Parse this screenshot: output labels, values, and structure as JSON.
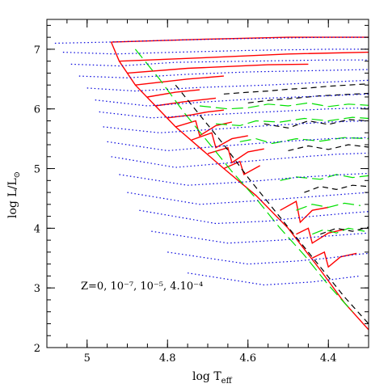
{
  "chart_data": {
    "type": "line",
    "title": "",
    "xlabel": "log T",
    "xlabel_sub": "eff",
    "ylabel": "log L/L",
    "ylabel_sub": "⊙",
    "xlim": [
      5.1,
      4.3
    ],
    "ylim": [
      2,
      7.5
    ],
    "x_ticks": [
      5,
      4.8,
      4.6,
      4.4
    ],
    "x_tick_labels": [
      "5",
      "4.8",
      "4.6",
      "4.4"
    ],
    "y_ticks": [
      2,
      3,
      4,
      5,
      6,
      7
    ],
    "y_tick_labels": [
      "2",
      "3",
      "4",
      "5",
      "6",
      "7"
    ],
    "annotation": "Z=0, 10⁻⁷, 10⁻⁵, 4.10⁻⁴",
    "grid": false,
    "series": [
      {
        "color": "#ff0000",
        "dash": "solid",
        "zams": {
          "x": [
            4.94,
            4.92,
            4.88,
            4.83,
            4.78,
            4.72,
            4.66,
            4.58,
            4.5,
            4.42,
            4.36,
            4.3
          ],
          "y": [
            7.12,
            6.8,
            6.4,
            6.05,
            5.7,
            5.35,
            5.0,
            4.55,
            4.0,
            3.3,
            2.75,
            2.3
          ]
        },
        "tracks": [
          {
            "x": [
              4.94,
              4.7,
              4.5,
              4.3
            ],
            "y": [
              7.12,
              7.17,
              7.2,
              7.2
            ]
          },
          {
            "x": [
              4.92,
              4.7,
              4.5,
              4.3
            ],
            "y": [
              6.8,
              6.86,
              6.92,
              6.95
            ]
          },
          {
            "x": [
              4.9,
              4.75,
              4.55,
              4.45
            ],
            "y": [
              6.6,
              6.68,
              6.74,
              6.75
            ]
          },
          {
            "x": [
              4.88,
              4.75,
              4.66
            ],
            "y": [
              6.4,
              6.5,
              6.55
            ]
          },
          {
            "x": [
              4.85,
              4.78,
              4.72
            ],
            "y": [
              6.2,
              6.28,
              6.32
            ]
          },
          {
            "x": [
              4.83,
              4.76,
              4.72,
              4.68
            ],
            "y": [
              6.05,
              6.12,
              6.15,
              6.18
            ]
          },
          {
            "x": [
              4.8,
              4.74,
              4.7,
              4.66
            ],
            "y": [
              5.85,
              5.9,
              5.95,
              5.98
            ]
          },
          {
            "x": [
              4.78,
              4.73,
              4.72,
              4.68,
              4.64
            ],
            "y": [
              5.7,
              5.8,
              5.55,
              5.72,
              5.78
            ]
          },
          {
            "x": [
              4.74,
              4.69,
              4.68,
              4.64,
              4.6
            ],
            "y": [
              5.48,
              5.6,
              5.35,
              5.5,
              5.55
            ]
          },
          {
            "x": [
              4.7,
              4.65,
              4.64,
              4.6,
              4.56
            ],
            "y": [
              5.25,
              5.35,
              5.1,
              5.28,
              5.33
            ]
          },
          {
            "x": [
              4.66,
              4.62,
              4.61,
              4.57
            ],
            "y": [
              5.0,
              5.12,
              4.9,
              5.05
            ]
          },
          {
            "x": [
              4.52,
              4.48,
              4.47,
              4.44,
              4.4
            ],
            "y": [
              4.3,
              4.45,
              4.1,
              4.3,
              4.35
            ]
          },
          {
            "x": [
              4.48,
              4.45,
              4.44,
              4.4,
              4.36
            ],
            "y": [
              3.9,
              4.0,
              3.75,
              3.92,
              3.98
            ]
          },
          {
            "x": [
              4.44,
              4.41,
              4.4,
              4.37,
              4.33
            ],
            "y": [
              3.5,
              3.6,
              3.35,
              3.52,
              3.58
            ]
          }
        ]
      },
      {
        "color": "#00e000",
        "dash": "14,6",
        "tracks": [
          {
            "x": [
              4.88,
              4.82,
              4.76,
              4.7,
              4.64,
              4.58,
              4.52,
              4.46,
              4.4,
              4.34
            ],
            "y": [
              7.0,
              6.5,
              5.95,
              5.45,
              4.95,
              4.5,
              4.0,
              3.55,
              3.05,
              2.6
            ]
          },
          {
            "x": [
              4.72,
              4.65,
              4.6,
              4.55,
              4.5,
              4.45,
              4.4,
              4.35,
              4.3
            ],
            "y": [
              6.05,
              6.0,
              6.02,
              6.08,
              6.05,
              6.1,
              6.04,
              6.08,
              6.06
            ]
          },
          {
            "x": [
              4.68,
              4.62,
              4.58,
              4.52,
              4.46,
              4.4,
              4.34,
              4.3
            ],
            "y": [
              5.75,
              5.72,
              5.8,
              5.78,
              5.84,
              5.8,
              5.86,
              5.84
            ]
          },
          {
            "x": [
              4.62,
              4.58,
              4.54,
              4.48,
              4.42,
              4.36,
              4.3
            ],
            "y": [
              5.45,
              5.5,
              5.42,
              5.5,
              5.46,
              5.52,
              5.5
            ]
          },
          {
            "x": [
              4.52,
              4.48,
              4.42,
              4.38,
              4.34,
              4.3
            ],
            "y": [
              4.8,
              4.86,
              4.82,
              4.9,
              4.85,
              4.88
            ]
          },
          {
            "x": [
              4.48,
              4.44,
              4.4,
              4.36,
              4.32
            ],
            "y": [
              4.3,
              4.4,
              4.35,
              4.42,
              4.38
            ]
          },
          {
            "x": [
              4.44,
              4.41,
              4.38,
              4.35,
              4.31
            ],
            "y": [
              3.9,
              3.98,
              3.92,
              4.0,
              3.95
            ]
          }
        ]
      },
      {
        "color": "#000000",
        "dash": "7,5",
        "tracks": [
          {
            "x": [
              4.78,
              4.72,
              4.66,
              4.6,
              4.54,
              4.48,
              4.42,
              4.36,
              4.3
            ],
            "y": [
              6.4,
              5.9,
              5.4,
              4.85,
              4.35,
              3.85,
              3.35,
              2.85,
              2.4
            ]
          },
          {
            "x": [
              4.66,
              4.6,
              4.55,
              4.5,
              4.45,
              4.4,
              4.35,
              4.3
            ],
            "y": [
              6.25,
              6.28,
              6.3,
              6.33,
              6.35,
              6.38,
              6.4,
              6.42
            ]
          },
          {
            "x": [
              4.6,
              4.54,
              4.48,
              4.42,
              4.36,
              4.3
            ],
            "y": [
              6.1,
              6.15,
              6.18,
              6.22,
              6.24,
              6.26
            ]
          },
          {
            "x": [
              4.56,
              4.5,
              4.45,
              4.4,
              4.35,
              4.3
            ],
            "y": [
              5.75,
              5.68,
              5.8,
              5.74,
              5.82,
              5.8
            ]
          },
          {
            "x": [
              4.5,
              4.45,
              4.4,
              4.35,
              4.3
            ],
            "y": [
              5.3,
              5.38,
              5.32,
              5.4,
              5.36
            ]
          },
          {
            "x": [
              4.46,
              4.42,
              4.38,
              4.34,
              4.3
            ],
            "y": [
              4.6,
              4.7,
              4.65,
              4.72,
              4.7
            ]
          },
          {
            "x": [
              4.42,
              4.38,
              4.34,
              4.3
            ],
            "y": [
              3.9,
              4.0,
              3.95,
              4.02
            ]
          }
        ]
      },
      {
        "color": "#0000dd",
        "dash": "1.5,3",
        "tracks": [
          {
            "x": [
              5.08,
              4.95,
              4.8,
              4.6,
              4.4,
              4.3
            ],
            "y": [
              7.1,
              7.12,
              7.15,
              7.18,
              7.2,
              7.2
            ]
          },
          {
            "x": [
              5.06,
              4.93,
              4.78,
              4.6,
              4.4,
              4.3
            ],
            "y": [
              6.95,
              6.92,
              6.95,
              6.98,
              7.0,
              7.0
            ]
          },
          {
            "x": [
              5.04,
              4.92,
              4.78,
              4.6,
              4.4,
              4.3
            ],
            "y": [
              6.75,
              6.72,
              6.78,
              6.8,
              6.82,
              6.82
            ]
          },
          {
            "x": [
              5.02,
              4.9,
              4.75,
              4.6,
              4.45,
              4.3
            ],
            "y": [
              6.55,
              6.52,
              6.58,
              6.62,
              6.64,
              6.66
            ]
          },
          {
            "x": [
              5.0,
              4.88,
              4.72,
              4.55,
              4.4,
              4.3
            ],
            "y": [
              6.35,
              6.3,
              6.36,
              6.4,
              6.45,
              6.48
            ]
          },
          {
            "x": [
              4.98,
              4.85,
              4.7,
              4.55,
              4.4,
              4.3
            ],
            "y": [
              6.15,
              6.05,
              6.12,
              6.18,
              6.22,
              6.25
            ]
          },
          {
            "x": [
              4.97,
              4.84,
              4.7,
              4.55,
              4.4,
              4.3
            ],
            "y": [
              5.95,
              5.85,
              5.9,
              5.95,
              6.0,
              6.02
            ]
          },
          {
            "x": [
              4.96,
              4.82,
              4.68,
              4.55,
              4.4,
              4.3
            ],
            "y": [
              5.7,
              5.6,
              5.66,
              5.72,
              5.78,
              5.8
            ]
          },
          {
            "x": [
              4.95,
              4.8,
              4.66,
              4.52,
              4.4,
              4.3
            ],
            "y": [
              5.45,
              5.3,
              5.38,
              5.45,
              5.5,
              5.52
            ]
          },
          {
            "x": [
              4.94,
              4.78,
              4.64,
              4.5,
              4.38,
              4.3
            ],
            "y": [
              5.2,
              5.02,
              5.1,
              5.18,
              5.24,
              5.26
            ]
          },
          {
            "x": [
              4.92,
              4.75,
              4.6,
              4.48,
              4.36,
              4.3
            ],
            "y": [
              4.9,
              4.72,
              4.78,
              4.85,
              4.9,
              4.92
            ]
          },
          {
            "x": [
              4.9,
              4.72,
              4.58,
              4.46,
              4.34,
              4.3
            ],
            "y": [
              4.6,
              4.4,
              4.46,
              4.52,
              4.58,
              4.6
            ]
          },
          {
            "x": [
              4.87,
              4.68,
              4.55,
              4.44,
              4.34,
              4.3
            ],
            "y": [
              4.3,
              4.08,
              4.12,
              4.2,
              4.26,
              4.28
            ]
          },
          {
            "x": [
              4.84,
              4.65,
              4.52,
              4.42,
              4.34,
              4.3
            ],
            "y": [
              3.95,
              3.75,
              3.8,
              3.86,
              3.9,
              3.92
            ]
          },
          {
            "x": [
              4.8,
              4.6,
              4.48,
              4.4,
              4.33,
              4.3
            ],
            "y": [
              3.6,
              3.4,
              3.45,
              3.5,
              3.56,
              3.58
            ]
          },
          {
            "x": [
              4.75,
              4.56,
              4.44,
              4.37,
              4.32
            ],
            "y": [
              3.25,
              3.05,
              3.1,
              3.16,
              3.2
            ]
          }
        ]
      }
    ]
  }
}
